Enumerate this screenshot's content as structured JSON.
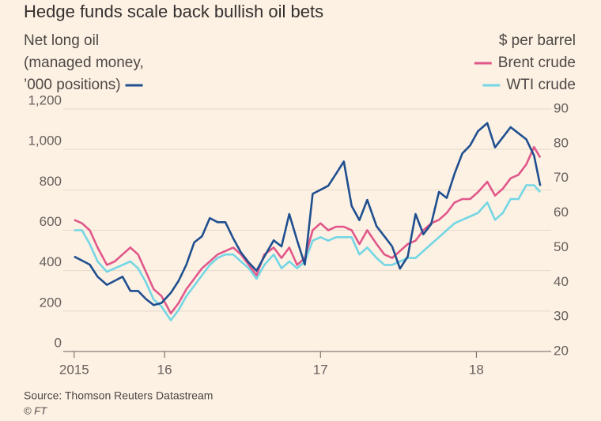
{
  "chart_data": {
    "type": "line",
    "title": "Hedge funds scale back bullish oil bets",
    "y_label": [
      "Net long oil",
      "(managed money,",
      "’000 positions)"
    ],
    "y2_label": "$ per barrel",
    "source": "Source: Thomson Reuters Datastream",
    "credit": "© FT",
    "x": [
      2015.42,
      2015.47,
      2015.52,
      2015.57,
      2015.63,
      2015.68,
      2015.73,
      2015.78,
      2015.83,
      2015.88,
      2015.93,
      2015.98,
      2016.04,
      2016.09,
      2016.14,
      2016.19,
      2016.24,
      2016.29,
      2016.34,
      2016.39,
      2016.44,
      2016.49,
      2016.54,
      2016.59,
      2016.64,
      2016.7,
      2016.75,
      2016.8,
      2016.85,
      2016.9,
      2016.95,
      2017.0,
      2017.05,
      2017.1,
      2017.15,
      2017.2,
      2017.25,
      2017.3,
      2017.36,
      2017.41,
      2017.46,
      2017.51,
      2017.56,
      2017.61,
      2017.66,
      2017.71,
      2017.76,
      2017.81,
      2017.86,
      2017.91,
      2017.96,
      2018.01,
      2018.07,
      2018.12,
      2018.17,
      2018.22,
      2018.27,
      2018.32,
      2018.37,
      2018.41
    ],
    "series": [
      {
        "name": "Net long oil",
        "color": "#1f4f8f",
        "axis": "y",
        "values": [
          470,
          450,
          430,
          370,
          330,
          350,
          370,
          300,
          300,
          260,
          230,
          240,
          290,
          350,
          430,
          540,
          570,
          660,
          640,
          640,
          560,
          490,
          440,
          400,
          470,
          550,
          520,
          680,
          550,
          430,
          780,
          800,
          820,
          880,
          940,
          720,
          650,
          750,
          620,
          570,
          520,
          410,
          470,
          680,
          580,
          630,
          790,
          760,
          880,
          980,
          1020,
          1090,
          1130,
          1010,
          1060,
          1110,
          1080,
          1050,
          970,
          820
        ]
      },
      {
        "name": "Brent crude",
        "color": "#e0588a",
        "axis": "y2",
        "values": [
          58,
          57,
          55,
          50,
          45,
          46,
          48,
          50,
          48,
          43,
          38,
          36,
          31,
          34,
          38,
          41,
          44,
          46,
          48,
          49,
          50,
          48,
          45,
          42,
          48,
          50,
          47,
          50,
          45,
          47,
          55,
          57,
          55,
          56,
          56,
          55,
          51,
          55,
          51,
          48,
          47,
          49,
          51,
          52,
          55,
          57,
          58,
          60,
          63,
          64,
          64,
          66,
          69,
          65,
          67,
          70,
          71,
          74,
          79,
          76
        ]
      },
      {
        "name": "WTI crude",
        "color": "#74d6e4",
        "axis": "y2",
        "values": [
          55,
          55,
          51,
          46,
          43,
          44,
          45,
          46,
          44,
          40,
          35,
          33,
          29,
          32,
          36,
          39,
          42,
          45,
          47,
          48,
          48,
          46,
          44,
          41,
          45,
          48,
          44,
          46,
          44,
          46,
          52,
          53,
          52,
          53,
          53,
          53,
          48,
          50,
          47,
          45,
          45,
          46,
          47,
          47,
          49,
          51,
          53,
          55,
          57,
          58,
          59,
          60,
          63,
          58,
          60,
          64,
          64,
          68,
          68,
          66
        ]
      }
    ],
    "xlim": [
      2015.35,
      2018.48
    ],
    "xticks": [
      {
        "value": 2015.42,
        "label": "2015"
      },
      {
        "value": 2016,
        "label": "16"
      },
      {
        "value": 2017,
        "label": "17"
      },
      {
        "value": 2018,
        "label": "18"
      }
    ],
    "ylim": [
      0,
      1200
    ],
    "yticks": [
      0,
      200,
      400,
      600,
      800,
      {
        "value": 1000,
        "label": "1,000"
      },
      {
        "value": 1200,
        "label": "1,200"
      }
    ],
    "y2lim": [
      20,
      90
    ],
    "y2ticks": [
      20,
      30,
      40,
      50,
      60,
      70,
      80,
      90
    ],
    "grid": true
  }
}
